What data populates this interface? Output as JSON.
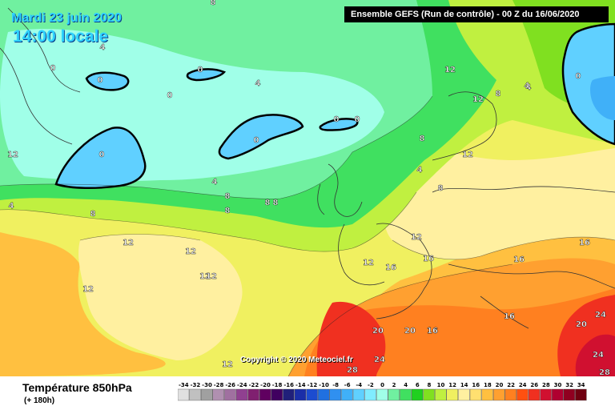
{
  "header": {
    "date": "Mardi 23 juin 2020",
    "time": "14:00 locale",
    "run_info": "Ensemble GEFS  (Run de contrôle)  -  00 Z du 16/06/2020"
  },
  "footer": {
    "parameter": "Température 850hPa",
    "lead_time": "(+ 180h)",
    "copyright": "Copyright © 2020 Meteociel.fr"
  },
  "legend": {
    "values": [
      "-34",
      "-32",
      "-30",
      "-28",
      "-26",
      "-24",
      "-22",
      "-20",
      "-18",
      "-16",
      "-14",
      "-12",
      "-10",
      "-8",
      "-6",
      "-4",
      "-2",
      "0",
      "2",
      "4",
      "6",
      "8",
      "10",
      "12",
      "14",
      "16",
      "18",
      "20",
      "22",
      "24",
      "26",
      "28",
      "30",
      "32",
      "34"
    ],
    "colors": [
      "#e0e0e0",
      "#c0c0c0",
      "#a0a0a0",
      "#b090b0",
      "#a070a0",
      "#904090",
      "#802070",
      "#600060",
      "#400060",
      "#20207a",
      "#1a2ea8",
      "#1c4cd0",
      "#2070e0",
      "#3090f0",
      "#40b0f8",
      "#60d0ff",
      "#80ecff",
      "#a0ffe8",
      "#70f0a0",
      "#40e060",
      "#20d020",
      "#80e020",
      "#c0f040",
      "#f0f060",
      "#fff0a0",
      "#ffe070",
      "#ffc040",
      "#ffa030",
      "#ff8020",
      "#ff5010",
      "#f03020",
      "#d01030",
      "#b00030",
      "#900020",
      "#700010"
    ]
  },
  "isotherm_labels": [
    {
      "text": "8"
    },
    {
      "text": "4"
    },
    {
      "text": "0"
    },
    {
      "text": "0"
    },
    {
      "text": "4"
    },
    {
      "text": "0"
    },
    {
      "text": "4"
    },
    {
      "text": "0"
    },
    {
      "text": "0"
    },
    {
      "text": "0"
    },
    {
      "text": "0"
    },
    {
      "text": "0"
    },
    {
      "text": "4"
    },
    {
      "text": "4"
    },
    {
      "text": "12"
    },
    {
      "text": "12"
    },
    {
      "text": "8"
    },
    {
      "text": "4"
    },
    {
      "text": "0"
    },
    {
      "text": "8"
    },
    {
      "text": "12"
    },
    {
      "text": "4"
    },
    {
      "text": "8"
    },
    {
      "text": "8"
    },
    {
      "text": "8"
    },
    {
      "text": "8"
    },
    {
      "text": "8"
    },
    {
      "text": "8"
    },
    {
      "text": "12"
    },
    {
      "text": "12"
    },
    {
      "text": "12"
    },
    {
      "text": "12"
    },
    {
      "text": "12"
    },
    {
      "text": "12"
    },
    {
      "text": "16"
    },
    {
      "text": "12"
    },
    {
      "text": "16"
    },
    {
      "text": "16"
    },
    {
      "text": "16"
    },
    {
      "text": "16"
    },
    {
      "text": "16"
    },
    {
      "text": "20"
    },
    {
      "text": "20"
    },
    {
      "text": "16"
    },
    {
      "text": "24"
    },
    {
      "text": "24"
    },
    {
      "text": "20"
    },
    {
      "text": "24"
    },
    {
      "text": "28"
    },
    {
      "text": "28"
    },
    {
      "text": "12"
    },
    {
      "text": "12"
    }
  ]
}
